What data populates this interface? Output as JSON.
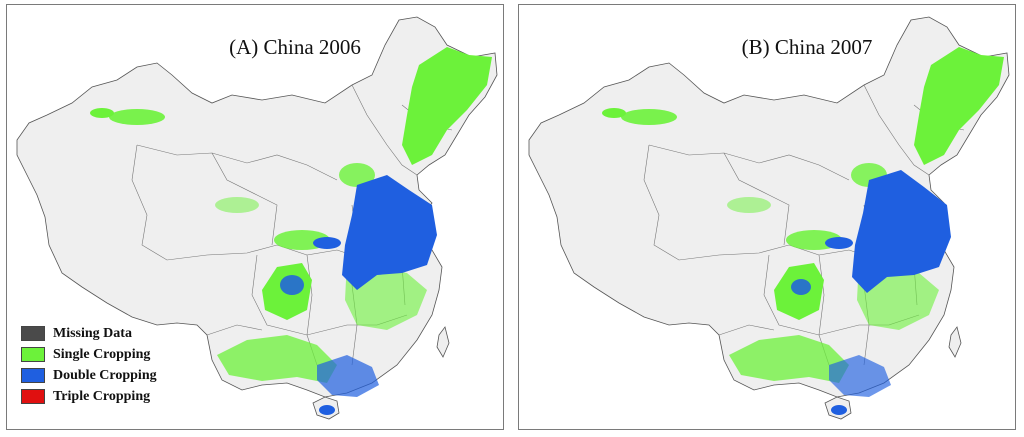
{
  "panels": [
    {
      "title": "(A) China 2006"
    },
    {
      "title": "(B) China 2007"
    }
  ],
  "legend": [
    {
      "label": "Missing Data",
      "color": "#4a4a4a"
    },
    {
      "label": "Single Cropping",
      "color": "#6cf23a"
    },
    {
      "label": "Double Cropping",
      "color": "#1f5fe0"
    },
    {
      "label": "Triple Cropping",
      "color": "#e01010"
    }
  ],
  "colors": {
    "land": "#efefef",
    "boundary": "#555555",
    "single": "#6cf23a",
    "double": "#1f5fe0"
  }
}
